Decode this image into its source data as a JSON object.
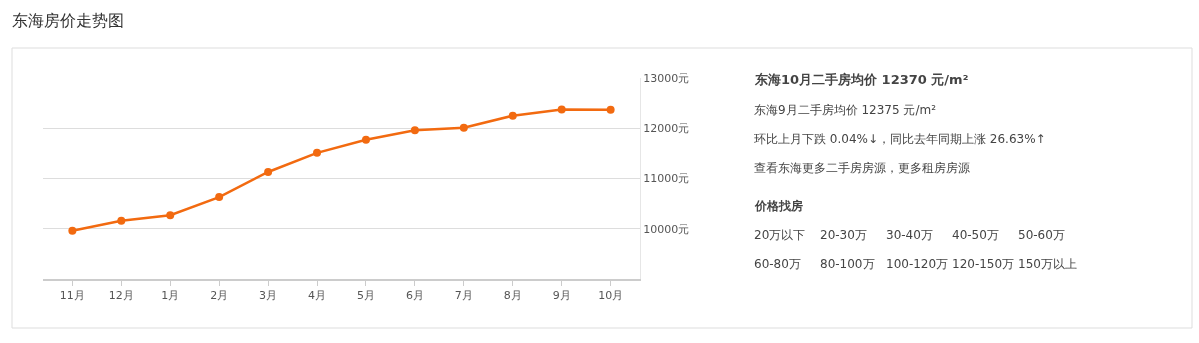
{
  "chart_data": {
    "type": "line",
    "title": "东海房价走势图",
    "categories": [
      "11月",
      "12月",
      "1月",
      "2月",
      "3月",
      "4月",
      "5月",
      "6月",
      "7月",
      "8月",
      "9月",
      "10月"
    ],
    "series": [
      {
        "color": "#f26a10",
        "values": [
          9960,
          10160,
          10270,
          10630,
          11130,
          11510,
          11770,
          11960,
          12010,
          12250,
          12375,
          12370
        ]
      }
    ],
    "ylim": [
      9000,
      13000
    ],
    "yticks": [
      {
        "value": 10000,
        "label": "10000元"
      },
      {
        "value": 11000,
        "label": "11000元"
      },
      {
        "value": 12000,
        "label": "12000元"
      },
      {
        "value": 13000,
        "label": "13000元"
      }
    ],
    "grid": "y",
    "marker": "circle",
    "line_style": "solid",
    "legend": false,
    "annotations": [
      "东海10月二手房均价 12370 元/m²",
      "东海9月二手房均价 12375 元/m²",
      "环比上月下跌 0.04%↓，同比去年同期上涨 26.63%↑",
      "查看东海更多二手房房源，更多租房房源",
      "价格找房",
      "20万以下",
      "20-30万",
      "30-40万",
      "40-50万",
      "50-60万",
      "60-80万",
      "80-100万",
      "100-120万",
      "120-150万",
      "150万以上"
    ]
  }
}
